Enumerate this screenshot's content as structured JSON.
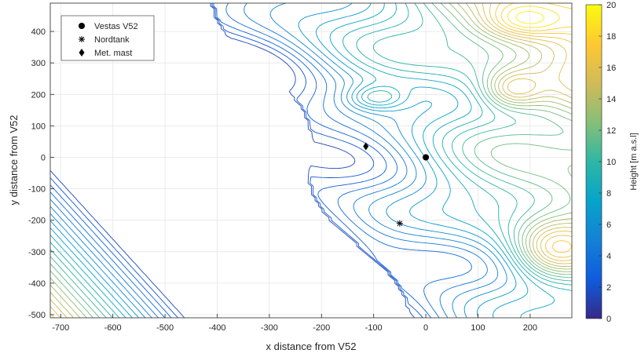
{
  "chart_data": {
    "type": "contour",
    "xlabel": "x distance from V52",
    "ylabel": "y distance from V52",
    "xlim": [
      -720,
      280
    ],
    "ylim": [
      -510,
      490
    ],
    "xticks": [
      -700,
      -600,
      -500,
      -400,
      -300,
      -200,
      -100,
      0,
      100,
      200
    ],
    "yticks": [
      -500,
      -400,
      -300,
      -200,
      -100,
      0,
      100,
      200,
      300,
      400
    ],
    "grid": true,
    "legend_position": "top-left",
    "colorbar": {
      "label": "Height [m a.s.l]",
      "range": [
        0,
        20
      ],
      "ticks": [
        0,
        2,
        4,
        6,
        8,
        10,
        12,
        14,
        16,
        18,
        20
      ],
      "colormap": "parula",
      "colors": [
        "#352a87",
        "#0f5cdd",
        "#1481d6",
        "#06a4ca",
        "#2eb7a4",
        "#87bf77",
        "#d1bb59",
        "#fec832",
        "#f9fb0e"
      ]
    },
    "markers": [
      {
        "name": "Vestas V52",
        "symbol": "circle",
        "x": 0,
        "y": 0
      },
      {
        "name": "Nordtank",
        "symbol": "asterisk",
        "x": -50,
        "y": -210
      },
      {
        "name": "Met. mast",
        "symbol": "diamond",
        "x": -115,
        "y": 35
      }
    ],
    "terrain_features": [
      {
        "kind": "peak",
        "x": -690,
        "y": -490,
        "height": 15
      },
      {
        "kind": "peak",
        "x": 240,
        "y": -300,
        "height": 16
      },
      {
        "kind": "peak",
        "x": 160,
        "y": 210,
        "height": 15
      },
      {
        "kind": "peak",
        "x": 180,
        "y": 430,
        "height": 15
      },
      {
        "kind": "hill",
        "x": -90,
        "y": 190,
        "height": 6
      },
      {
        "kind": "hill",
        "x": -290,
        "y": -470,
        "height": 8
      },
      {
        "kind": "shoreline",
        "height": 2
      }
    ]
  }
}
